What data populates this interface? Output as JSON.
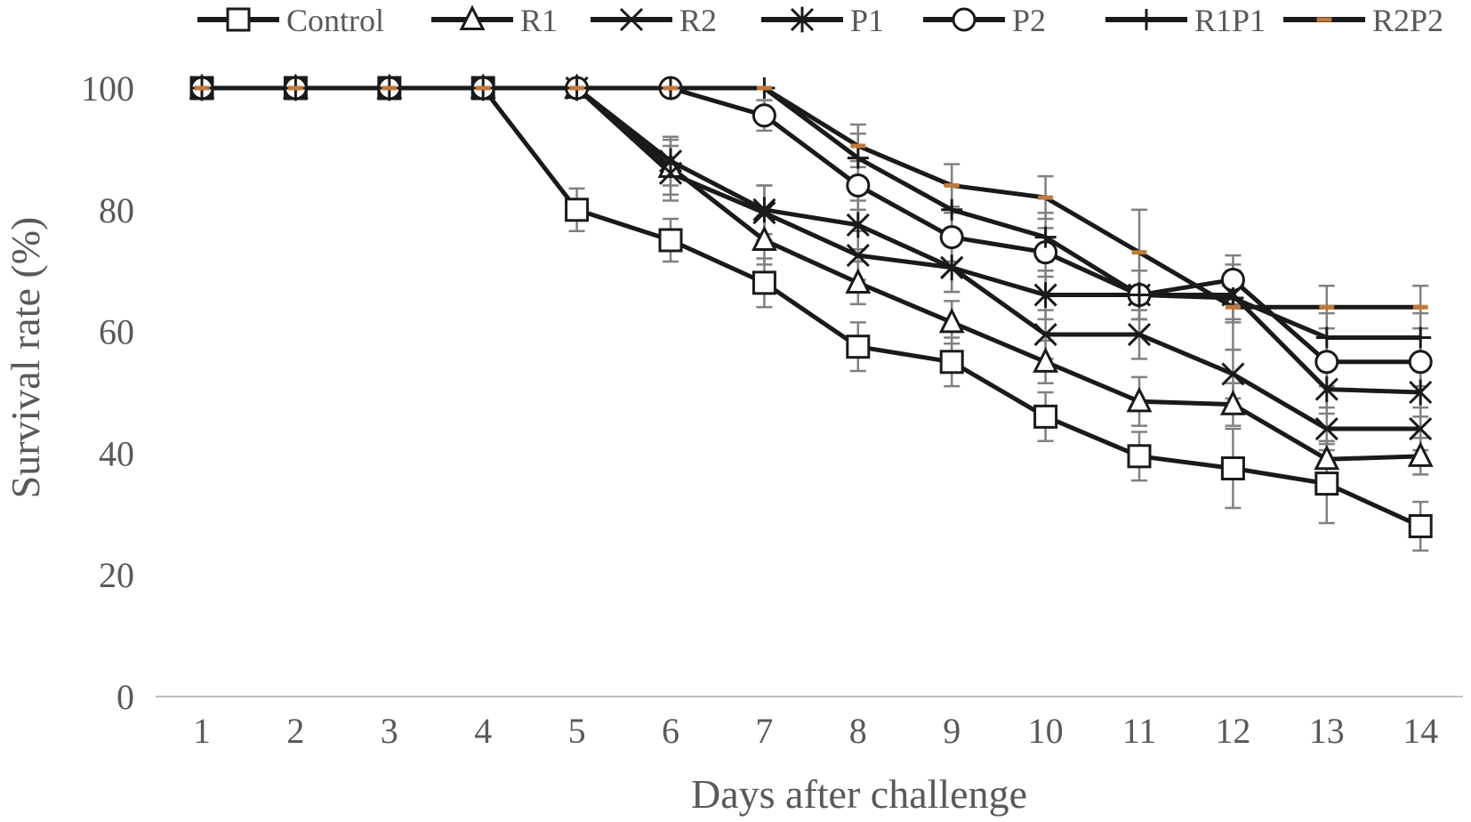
{
  "chart_data": {
    "type": "line",
    "xlabel": "Days after challenge",
    "ylabel": "Survival rate (%)",
    "x": [
      1,
      2,
      3,
      4,
      5,
      6,
      7,
      8,
      9,
      10,
      11,
      12,
      13,
      14
    ],
    "xlim": [
      1,
      14
    ],
    "ylim": [
      0,
      100
    ],
    "yticks": [
      0,
      20,
      40,
      60,
      80,
      100
    ],
    "grid": false,
    "legend_position": "top",
    "error_bars": true,
    "series": [
      {
        "name": "Control",
        "marker": "square",
        "color": "#1a1a1a",
        "values": [
          100,
          100,
          100,
          100,
          80,
          75,
          68,
          57.5,
          55,
          46,
          39.5,
          37.5,
          35,
          28
        ],
        "errors": [
          0,
          0,
          0,
          0,
          3.5,
          3.5,
          4,
          4,
          4,
          4,
          4,
          6.5,
          6.5,
          4
        ]
      },
      {
        "name": "R1",
        "marker": "triangle",
        "color": "#1a1a1a",
        "values": [
          100,
          100,
          100,
          100,
          100,
          87,
          75,
          68,
          61.5,
          55,
          48.5,
          48,
          39,
          39.5
        ],
        "errors": [
          0,
          0,
          0,
          0,
          0,
          4.5,
          4,
          3.5,
          3.5,
          3.5,
          4,
          3.5,
          3,
          3
        ]
      },
      {
        "name": "R2",
        "marker": "x",
        "color": "#1a1a1a",
        "values": [
          100,
          100,
          100,
          100,
          100,
          86,
          79.5,
          72.5,
          70.5,
          59.5,
          59.5,
          53,
          44,
          44
        ],
        "errors": [
          0,
          0,
          0,
          0,
          0,
          4.5,
          4.5,
          4,
          4,
          4,
          4,
          4,
          3.5,
          3.5
        ]
      },
      {
        "name": "P1",
        "marker": "star",
        "color": "#1a1a1a",
        "values": [
          100,
          100,
          100,
          100,
          100,
          88,
          80,
          77.5,
          70.5,
          66,
          66,
          66,
          50.5,
          50
        ],
        "errors": [
          0,
          0,
          0,
          0,
          0,
          4,
          4,
          4,
          4,
          4,
          4,
          4,
          4,
          4
        ]
      },
      {
        "name": "P2",
        "marker": "circle",
        "color": "#1a1a1a",
        "values": [
          100,
          100,
          100,
          100,
          100,
          100,
          95.5,
          84,
          75.5,
          73,
          66,
          68.5,
          55,
          55
        ],
        "errors": [
          0,
          0,
          0,
          0,
          0,
          0,
          2.5,
          4,
          4,
          4,
          4,
          4,
          4,
          4
        ]
      },
      {
        "name": "R1P1",
        "marker": "plus",
        "color": "#1a1a1a",
        "values": [
          100,
          100,
          100,
          100,
          100,
          100,
          100,
          88.5,
          80,
          75.5,
          66,
          65.5,
          59,
          59
        ],
        "errors": [
          0,
          0,
          0,
          0,
          0,
          0,
          0,
          4,
          4,
          4,
          4,
          4,
          4,
          4
        ]
      },
      {
        "name": "R2P2",
        "marker": "dash",
        "color": "#1a1a1a",
        "marker_color": "#c07a3b",
        "values": [
          100,
          100,
          100,
          100,
          100,
          100,
          100,
          90.5,
          84,
          82,
          73,
          64,
          64,
          64
        ],
        "errors": [
          0,
          0,
          0,
          0,
          0,
          0,
          0,
          3.5,
          3.5,
          3.5,
          7,
          7,
          3.5,
          3.5
        ]
      }
    ]
  }
}
